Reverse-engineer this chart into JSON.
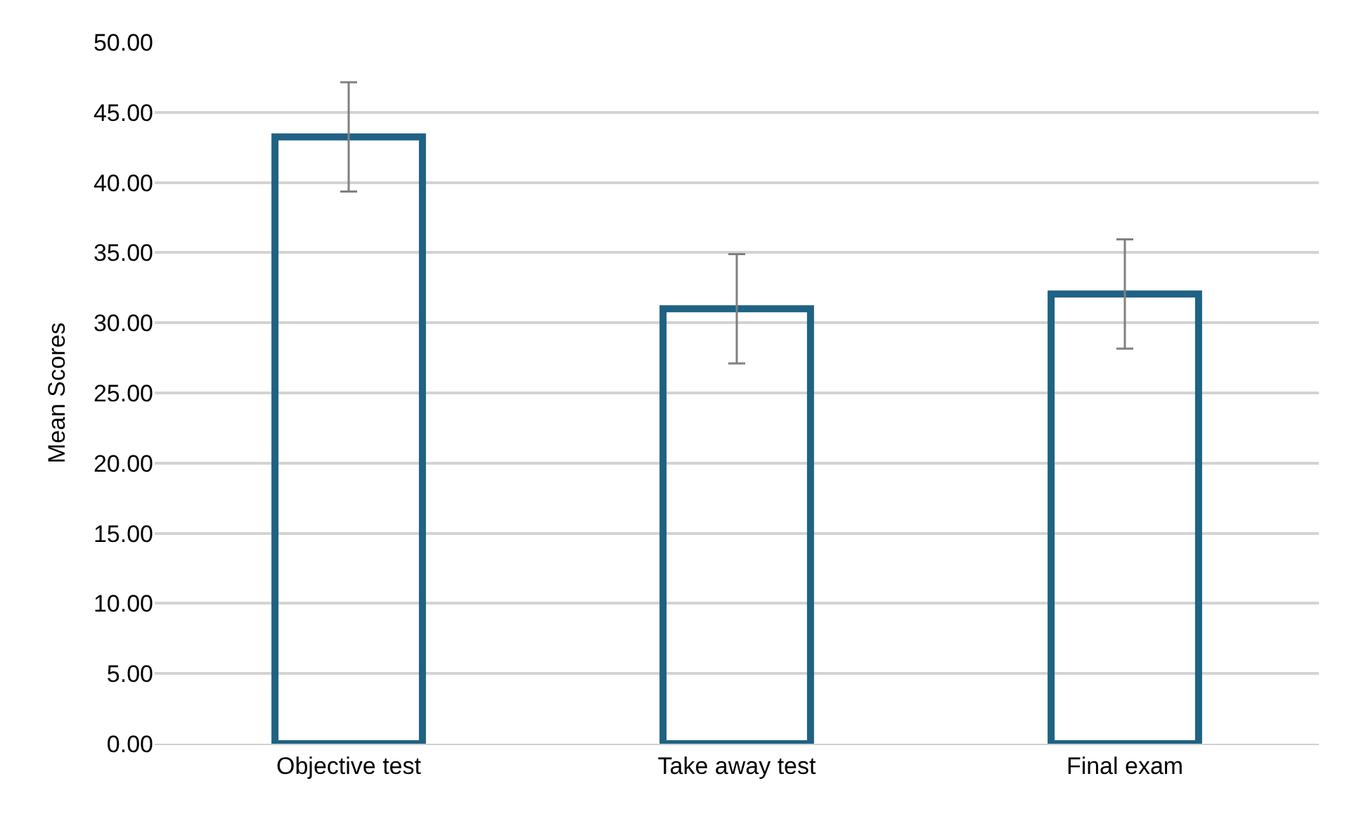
{
  "chart_data": {
    "type": "bar",
    "ylabel": "Mean Scores",
    "categories": [
      "Objective test",
      "Take away test",
      "Final exam"
    ],
    "series": [
      {
        "color": "#1f6283",
        "values": [
          43.25,
          31.0,
          32.05
        ],
        "errors": [
          3.9,
          3.9,
          3.9
        ]
      }
    ],
    "ylim": [
      0,
      50
    ],
    "yticks": [
      {
        "value": 0,
        "label": "0.00"
      },
      {
        "value": 5,
        "label": "5.00"
      },
      {
        "value": 10,
        "label": "10.00"
      },
      {
        "value": 15,
        "label": "15.00"
      },
      {
        "value": 20,
        "label": "20.00"
      },
      {
        "value": 25,
        "label": "25.00"
      },
      {
        "value": 30,
        "label": "30.00"
      },
      {
        "value": 35,
        "label": "35.00"
      },
      {
        "value": 40,
        "label": "40.00"
      },
      {
        "value": 45,
        "label": "45.00"
      },
      {
        "value": 50,
        "label": "50.00"
      }
    ],
    "grid": "y",
    "legend": false
  }
}
